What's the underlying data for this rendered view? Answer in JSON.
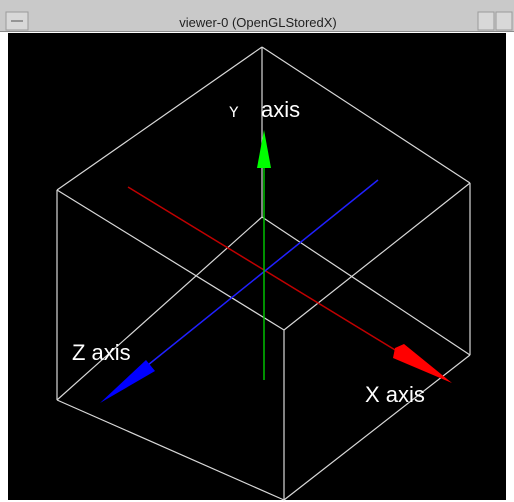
{
  "window": {
    "title": "viewer-0 (OpenGLStoredX)"
  },
  "labels": {
    "y_axis": {
      "letter": "Y",
      "word": "axis"
    },
    "z_axis": "Z axis",
    "x_axis": "X axis"
  }
}
